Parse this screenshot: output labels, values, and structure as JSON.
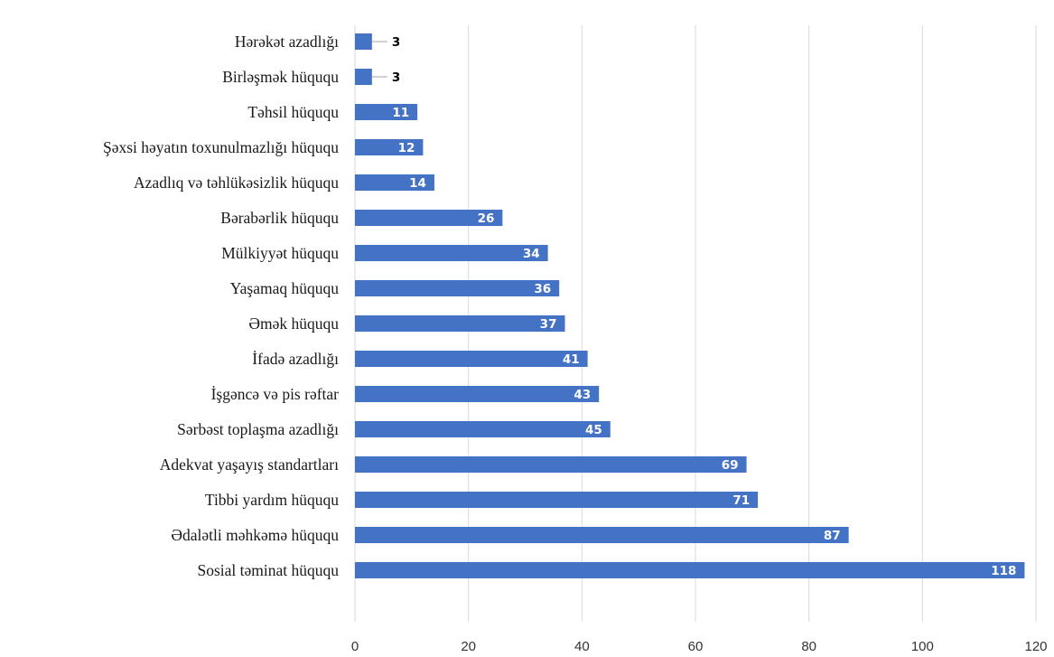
{
  "chart_data": {
    "type": "bar",
    "orientation": "horizontal",
    "categories": [
      "Hərəkət azadlığı",
      "Birləşmək hüququ",
      "Təhsil hüququ",
      "Şəxsi həyatın toxunulmazlığı hüququ",
      "Azadlıq və təhlükəsizlik hüququ",
      "Bərabərlik hüququ",
      "Mülkiyyət hüququ",
      "Yaşamaq hüququ",
      "Əmək hüququ",
      "İfadə azadlığı",
      "İşgəncə və pis rəftar",
      "Sərbəst toplaşma azadlığı",
      "Adekvat yaşayış standartları",
      "Tibbi yardım hüququ",
      "Ədalətli məhkəmə hüququ",
      "Sosial təminat hüququ"
    ],
    "values": [
      3,
      3,
      11,
      12,
      14,
      26,
      34,
      36,
      37,
      41,
      43,
      45,
      69,
      71,
      87,
      118
    ],
    "title": "",
    "xlabel": "",
    "ylabel": "",
    "xlim": [
      0,
      120
    ],
    "xticks": [
      0,
      20,
      40,
      60,
      80,
      100,
      120
    ],
    "grid": true,
    "legend": "none",
    "bar_color": "#4472c4",
    "data_label_color_inside": "#ffffff",
    "data_label_color_outside": "#000000",
    "gridline_color": "#d9d9d9"
  }
}
